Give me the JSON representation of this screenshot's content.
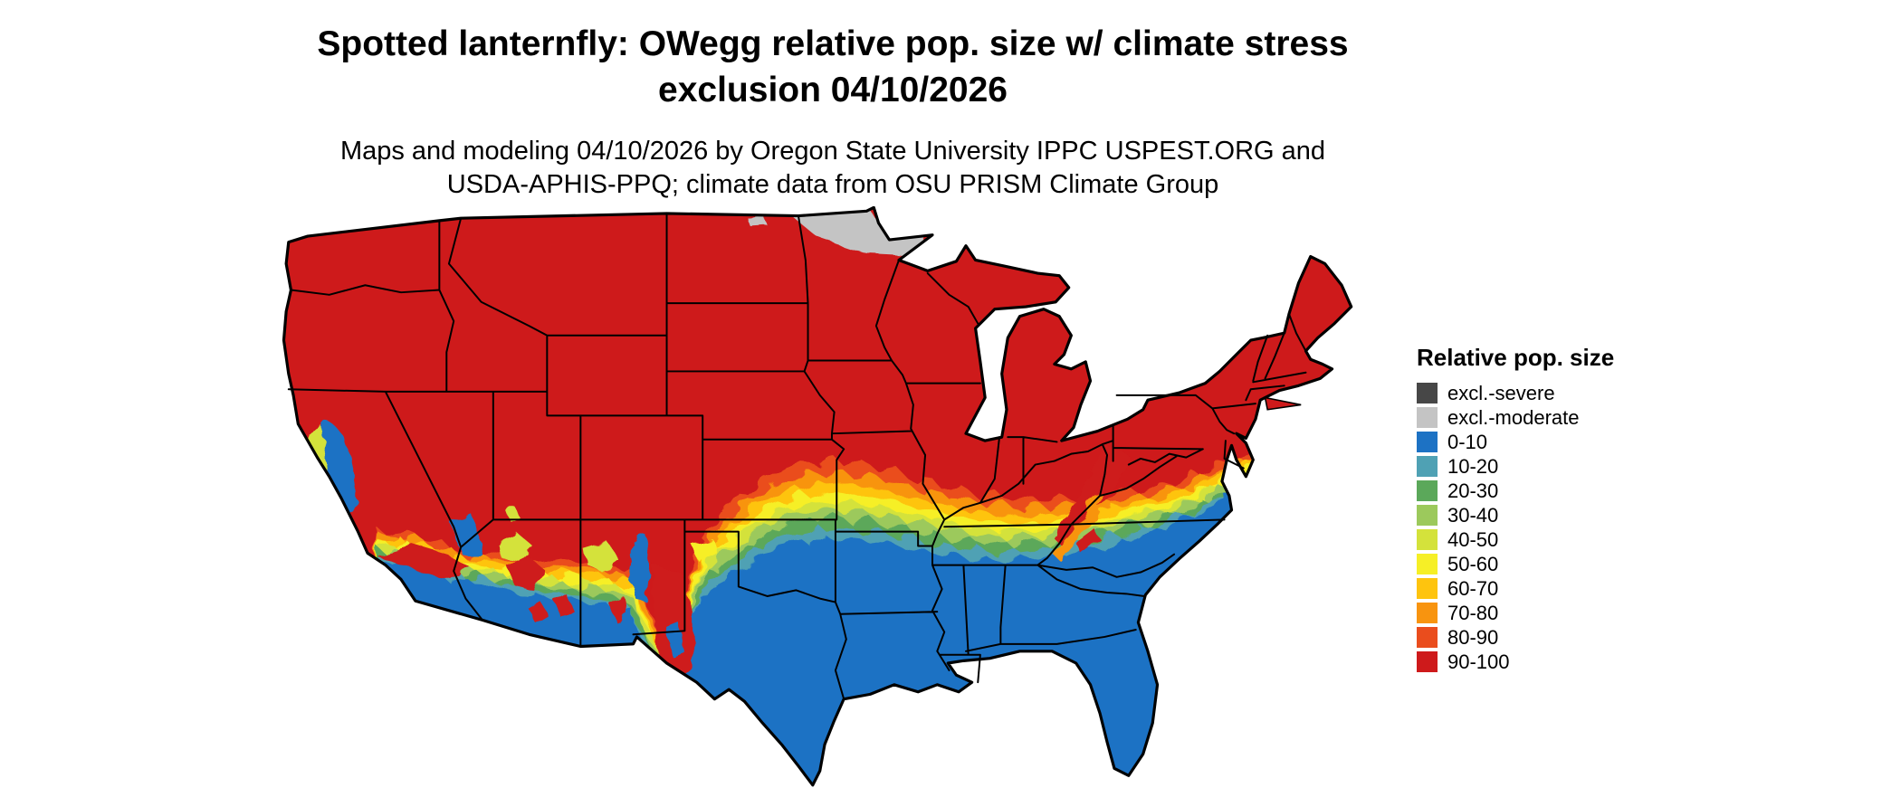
{
  "header": {
    "title_line1": "Spotted lanternfly: OWegg relative pop. size w/ climate stress",
    "title_line2": "exclusion 04/10/2026",
    "subtitle_line1": "Maps and modeling 04/10/2026 by Oregon State University IPPC USPEST.ORG and",
    "subtitle_line2": "USDA-APHIS-PPQ; climate data from OSU PRISM Climate Group"
  },
  "legend": {
    "title": "Relative pop. size",
    "items": [
      {
        "label": "excl.-severe",
        "color": "#474747"
      },
      {
        "label": "excl.-moderate",
        "color": "#c4c4c4"
      },
      {
        "label": "0-10",
        "color": "#1d72c4"
      },
      {
        "label": "10-20",
        "color": "#4fa1b4"
      },
      {
        "label": "20-30",
        "color": "#5ba85a"
      },
      {
        "label": "30-40",
        "color": "#9cc95c"
      },
      {
        "label": "40-50",
        "color": "#d4e23b"
      },
      {
        "label": "50-60",
        "color": "#f6ef26"
      },
      {
        "label": "60-70",
        "color": "#fec40e"
      },
      {
        "label": "70-80",
        "color": "#f8940f"
      },
      {
        "label": "80-90",
        "color": "#ea4d1d"
      },
      {
        "label": "90-100",
        "color": "#ce1a1b"
      }
    ]
  }
}
